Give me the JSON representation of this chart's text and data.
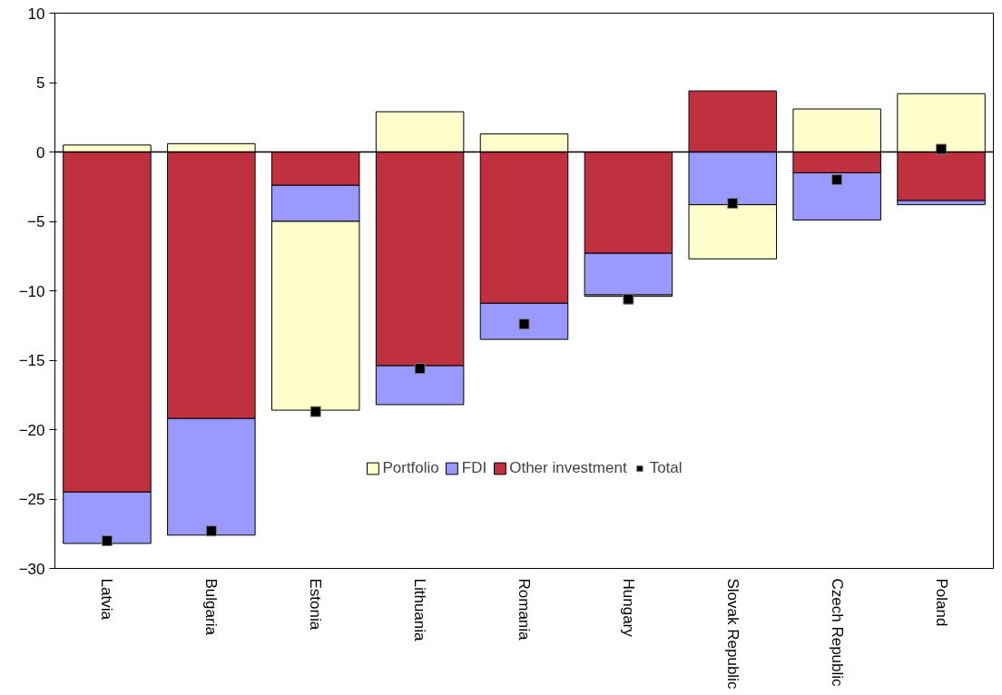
{
  "chart_data": {
    "type": "bar",
    "stacked": true,
    "categories": [
      "Latvia",
      "Bulgaria",
      "Estonia",
      "Lithuania",
      "Romania",
      "Hungary",
      "Slovak Republic",
      "Czech Republic",
      "Poland"
    ],
    "series": [
      {
        "name": "Other investment",
        "color": "#c0313f",
        "values": [
          -24.5,
          -19.2,
          -2.4,
          -15.4,
          -10.9,
          -7.3,
          4.4,
          -1.5,
          -3.5
        ]
      },
      {
        "name": "FDI",
        "color": "#9999ff",
        "values": [
          -3.7,
          -8.4,
          -2.6,
          -2.8,
          -2.6,
          -3.0,
          -3.8,
          -3.4,
          -0.3
        ]
      },
      {
        "name": "Portfolio",
        "color": "#ffffcc",
        "values": [
          0.5,
          0.6,
          -13.6,
          2.9,
          1.3,
          -0.1,
          -3.9,
          3.1,
          4.2
        ]
      },
      {
        "name": "Total",
        "type": "scatter",
        "color": "#000000",
        "marker": "square",
        "values": [
          -28.0,
          -27.3,
          -18.7,
          -15.6,
          -12.4,
          -10.6,
          -3.7,
          -2.0,
          0.2
        ]
      }
    ],
    "ylim": [
      -30,
      10
    ],
    "yticks": [
      -30,
      -25,
      -20,
      -15,
      -10,
      -5,
      0,
      5,
      10
    ],
    "ref_lines": [
      {
        "axis": "y",
        "value": 0,
        "color": "#000000"
      }
    ],
    "grid": false,
    "legend": "bottom"
  }
}
